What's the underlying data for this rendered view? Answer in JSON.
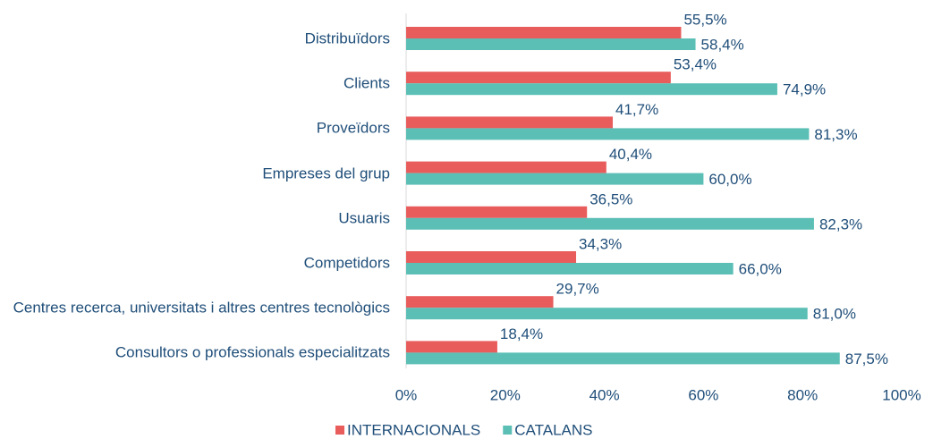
{
  "chart_data": {
    "type": "barh",
    "categories": [
      "Distribuïdors",
      "Clients",
      "Proveïdors",
      "Empreses del grup",
      "Usuaris",
      "Competidors",
      "Centres recerca, universitats i altres centres tecnològics",
      "Consultors o professionals especialitzats"
    ],
    "series": [
      {
        "name": "INTERNACIONALS",
        "color": "#e85c5c",
        "values": [
          55.5,
          53.4,
          41.7,
          40.4,
          36.5,
          34.3,
          29.7,
          18.4
        ],
        "value_labels": [
          "55,5%",
          "53,4%",
          "41,7%",
          "40,4%",
          "36,5%",
          "34,3%",
          "29,7%",
          "18,4%"
        ]
      },
      {
        "name": "CATALANS",
        "color": "#5bbfb5",
        "values": [
          58.4,
          74.9,
          81.3,
          60.0,
          82.3,
          66.0,
          81.0,
          87.5
        ],
        "value_labels": [
          "58,4%",
          "74,9%",
          "81,3%",
          "60,0%",
          "82,3%",
          "66,0%",
          "81,0%",
          "87,5%"
        ]
      }
    ],
    "xlim": [
      0,
      100
    ],
    "xticks": [
      {
        "value": 0,
        "label": "0%"
      },
      {
        "value": 20,
        "label": "20%"
      },
      {
        "value": 40,
        "label": "40%"
      },
      {
        "value": 60,
        "label": "60%"
      },
      {
        "value": 80,
        "label": "80%"
      },
      {
        "value": 100,
        "label": "100%"
      }
    ],
    "legend": "bottom"
  }
}
